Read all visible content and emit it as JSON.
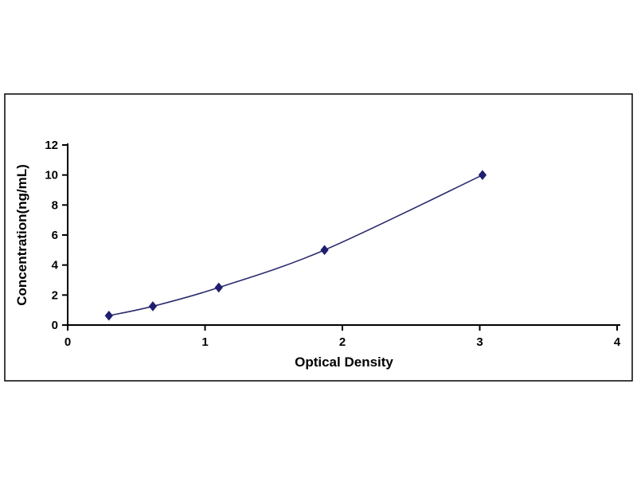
{
  "chart_data": {
    "type": "line",
    "title": "",
    "xlabel": "Optical Density",
    "ylabel": "Concentration(ng/mL)",
    "x": [
      0.3,
      0.62,
      1.1,
      1.87,
      3.02
    ],
    "y": [
      0.625,
      1.25,
      2.5,
      5,
      10
    ],
    "xlim": [
      0,
      4
    ],
    "ylim": [
      0,
      12
    ],
    "xticks": [
      0,
      1,
      2,
      3,
      4
    ],
    "yticks": [
      0,
      2,
      4,
      6,
      8,
      10,
      12
    ],
    "grid": "off",
    "legend": "none",
    "marker": "diamond",
    "line_color": "#2b2b6e",
    "marker_color": "#1f1f70",
    "axis_color": "#000000",
    "frame_color": "#000000",
    "background_color": "#ffffff"
  }
}
